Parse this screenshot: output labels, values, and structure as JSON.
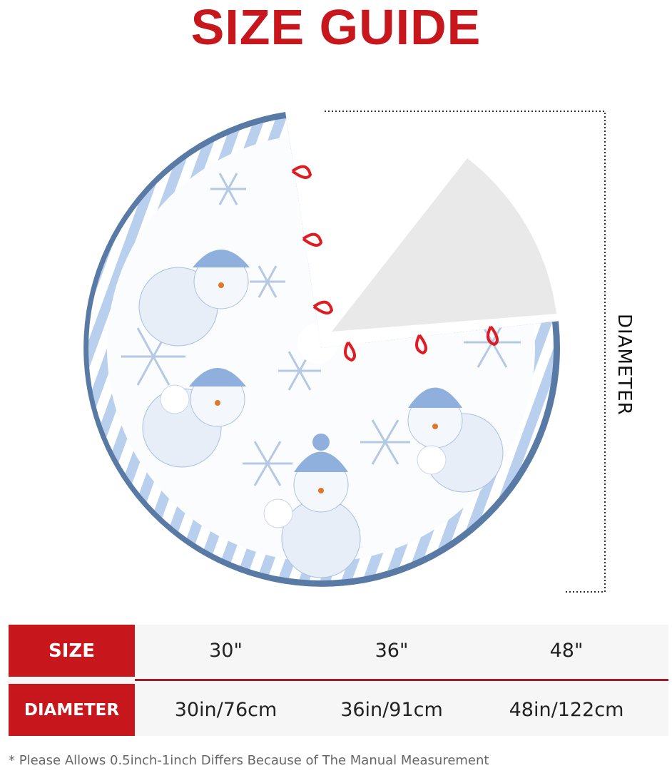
{
  "title": "SIZE GUIDE",
  "diameter_label": "DIAMETER",
  "colors": {
    "accent_red": "#c8161d",
    "border_blue": "#5a7aa6",
    "stripe_blue": "#b9cfee"
  },
  "table": {
    "headers": [
      "SIZE",
      "DIAMETER"
    ],
    "sizes": [
      "30\"",
      "36\"",
      "48\""
    ],
    "diameters": [
      "30in/76cm",
      "36in/91cm",
      "48in/122cm"
    ]
  },
  "note": "* Please Allows 0.5inch-1inch Differs Because of The  Manual Measurement"
}
